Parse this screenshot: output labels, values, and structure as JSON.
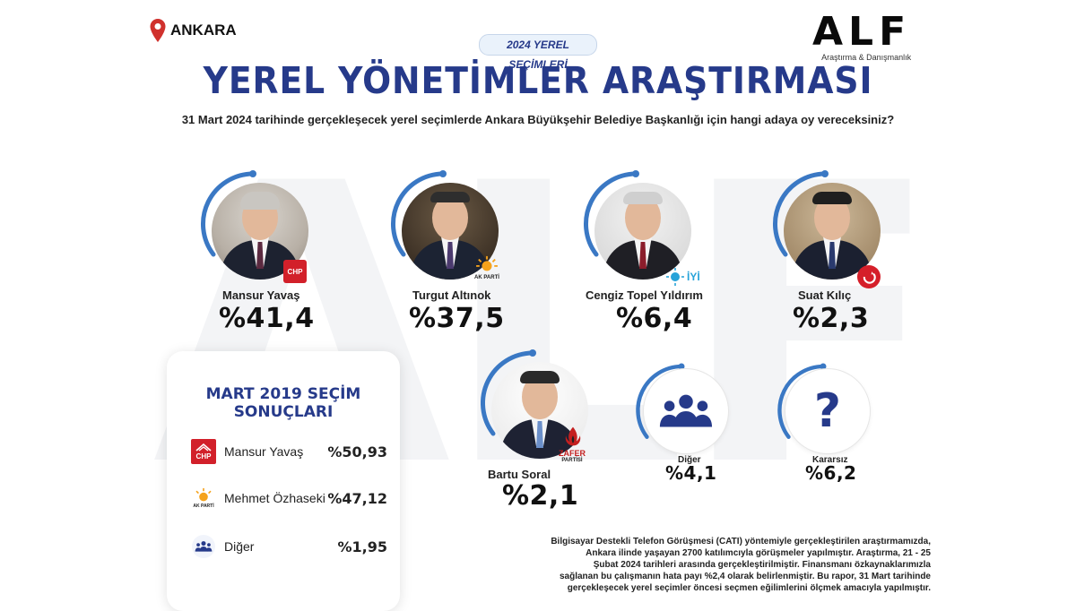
{
  "header": {
    "location": "ANKARA",
    "brand": "ALF",
    "brand_tagline": "Araştırma & Danışmanlık",
    "election_pill": "2024 YEREL SEÇİMLERİ",
    "title": "YEREL YÖNETİMLER ARAŞTIRMASI",
    "question": "31 Mart 2024 tarihinde gerçekleşecek yerel seçimlerde Ankara Büyükşehir Belediye Başkanlığı için hangi adaya oy vereceksiniz?"
  },
  "watermark": "ALF",
  "colors": {
    "primary": "#263a8a",
    "ring": "#3a78c4",
    "chp": "#d2202a",
    "akp": "#f5a21b",
    "iyi": "#27a3d9",
    "ydp": "#d51f2a",
    "zafer": "#c41f1f"
  },
  "candidates": [
    {
      "name": "Mansur Yavaş",
      "pct": "%41,4",
      "party": "CHP"
    },
    {
      "name": "Turgut Altınok",
      "pct": "%37,5",
      "party": "AK PARTİ"
    },
    {
      "name": "Cengiz Topel Yıldırım",
      "pct": "%6,4",
      "party": "İYİ"
    },
    {
      "name": "Suat Kılıç",
      "pct": "%2,3",
      "party": "YENİDEN REFAH"
    },
    {
      "name": "Bartu Soral",
      "pct": "%2,1",
      "party": "ZAFER PARTİSİ"
    },
    {
      "name": "Diğer",
      "pct": "%4,1",
      "icon": "people-group-icon"
    },
    {
      "name": "Kararsız",
      "pct": "%6,2",
      "icon": "question-mark-icon"
    }
  ],
  "party_labels": {
    "chp": "CHP",
    "akp": "AK PARTİ",
    "zafer_line1": "ZAFER",
    "zafer_line2": "PARTİSİ"
  },
  "results_2019": {
    "title": "MART 2019 SEÇİM SONUÇLARI",
    "rows": [
      {
        "name": "Mansur Yavaş",
        "value": "%50,93",
        "icon": "chp-logo-icon"
      },
      {
        "name": "Mehmet Özhaseki",
        "value": "%47,12",
        "icon": "ak-parti-logo-icon"
      },
      {
        "name": "Diğer",
        "value": "%1,95",
        "icon": "people-group-icon"
      }
    ]
  },
  "methodology": [
    "Bilgisayar Destekli Telefon Görüşmesi (CATI) yöntemiyle gerçekleştirilen araştırmamızda,",
    "Ankara ilinde yaşayan 2700 katılımcıyla görüşmeler yapılmıştır. Araştırma, 21 - 25",
    "Şubat 2024 tarihleri arasında gerçekleştirilmiştir. Finansmanı özkaynaklarımızla",
    "sağlanan bu çalışmanın hata payı %2,4 olarak belirlenmiştir. Bu rapor, 31 Mart tarihinde",
    "gerçekleşecek yerel seçimler öncesi seçmen eğilimlerini ölçmek amacıyla yapılmıştır."
  ]
}
